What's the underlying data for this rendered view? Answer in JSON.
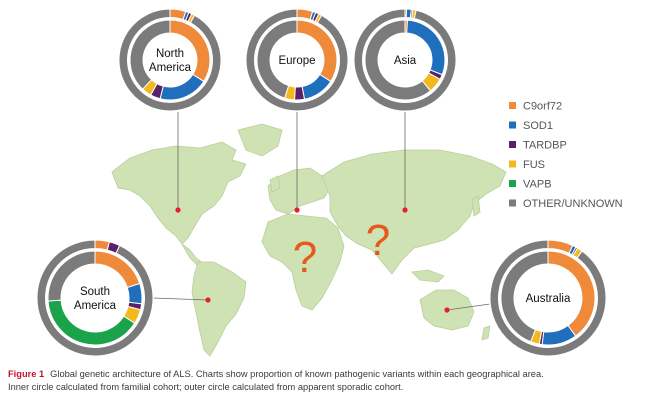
{
  "colors": {
    "map_land": "#cfe2b4",
    "map_outline": "#b9cf9c",
    "marker": "#e1232b",
    "question": "#e35a1c",
    "inner_bg": "#ffffff",
    "ring_gap": "#ffffff"
  },
  "chart_data": {
    "type": "pie",
    "variant": "nested-donut-on-map",
    "legend": {
      "placement": "right",
      "entries": [
        {
          "label": "C9orf72",
          "color": "#ee8a3a"
        },
        {
          "label": "SOD1",
          "color": "#1f6fbd"
        },
        {
          "label": "TARDBP",
          "color": "#5c1f6b"
        },
        {
          "label": "FUS",
          "color": "#f2b91c"
        },
        {
          "label": "VAPB",
          "color": "#1aa34a"
        },
        {
          "label": "OTHER/UNKNOWN",
          "color": "#7b7b7b"
        }
      ]
    },
    "regions": [
      {
        "name": "North America",
        "inner_familial": {
          "C9orf72": 34,
          "SOD1": 20,
          "TARDBP": 4,
          "FUS": 4,
          "VAPB": 0,
          "OTHER/UNKNOWN": 38
        },
        "outer_sporadic": {
          "C9orf72": 5,
          "SOD1": 1,
          "TARDBP": 1,
          "FUS": 1,
          "VAPB": 0,
          "OTHER/UNKNOWN": 92
        }
      },
      {
        "name": "Europe",
        "inner_familial": {
          "C9orf72": 34,
          "SOD1": 13,
          "TARDBP": 4,
          "FUS": 4,
          "VAPB": 0,
          "OTHER/UNKNOWN": 45
        },
        "outer_sporadic": {
          "C9orf72": 5,
          "SOD1": 1,
          "TARDBP": 1,
          "FUS": 1,
          "VAPB": 0,
          "OTHER/UNKNOWN": 92
        }
      },
      {
        "name": "Asia",
        "inner_familial": {
          "C9orf72": 1,
          "SOD1": 30,
          "TARDBP": 2,
          "FUS": 6,
          "VAPB": 0,
          "OTHER/UNKNOWN": 61
        },
        "outer_sporadic": {
          "C9orf72": 0.5,
          "SOD1": 1.5,
          "TARDBP": 0.5,
          "FUS": 1,
          "VAPB": 0,
          "OTHER/UNKNOWN": 96.5
        }
      },
      {
        "name": "South America",
        "inner_familial": {
          "C9orf72": 20,
          "SOD1": 7,
          "TARDBP": 2,
          "FUS": 5,
          "VAPB": 40,
          "OTHER/UNKNOWN": 26
        },
        "outer_sporadic": {
          "C9orf72": 4,
          "SOD1": 0,
          "TARDBP": 3,
          "FUS": 0,
          "VAPB": 0,
          "OTHER/UNKNOWN": 93
        }
      },
      {
        "name": "Australia",
        "inner_familial": {
          "C9orf72": 40,
          "SOD1": 12,
          "TARDBP": 1,
          "FUS": 3,
          "VAPB": 0,
          "OTHER/UNKNOWN": 44
        },
        "outer_sporadic": {
          "C9orf72": 7,
          "SOD1": 1,
          "TARDBP": 0.5,
          "FUS": 1.5,
          "VAPB": 0,
          "OTHER/UNKNOWN": 90
        }
      }
    ],
    "unknown_regions": [
      "Africa",
      "South Asia"
    ],
    "question_mark": "?"
  },
  "caption": {
    "figure_label": "Figure 1",
    "line1": "Global genetic architecture of ALS. Charts show proportion of known pathogenic variants within each geographical area.",
    "line2": "Inner circle calculated from familial cohort; outer circle calculated from apparent sporadic cohort."
  }
}
